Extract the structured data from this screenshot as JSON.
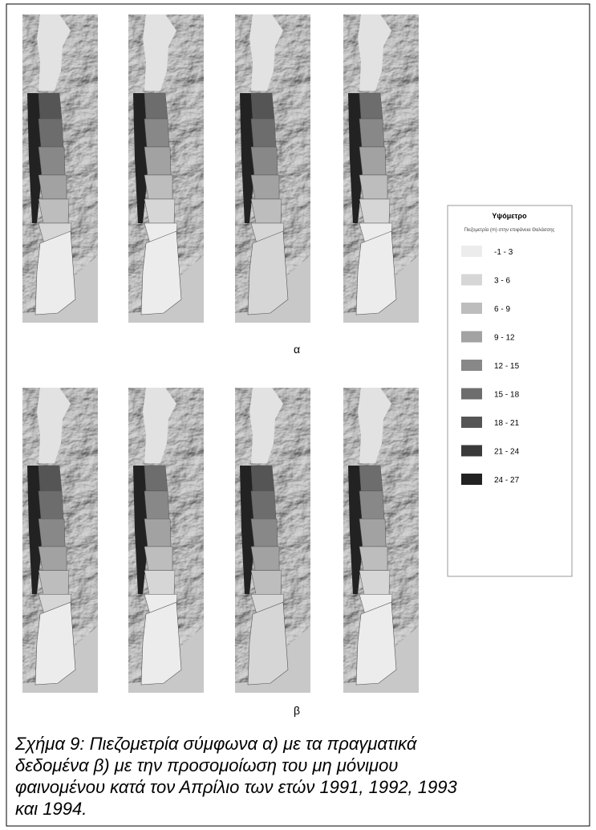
{
  "figure": {
    "panel_labels": [
      "α",
      "β"
    ]
  },
  "legend": {
    "title": "Υψόμετρο",
    "subtitle": "Πιεζομετρία (m) στην επιφάνεια Θαλάσσης",
    "items": [
      {
        "label": "-1 - 3",
        "color": "#ececec"
      },
      {
        "label": "3 - 6",
        "color": "#d6d6d6"
      },
      {
        "label": "6 - 9",
        "color": "#bdbdbd"
      },
      {
        "label": "9 - 12",
        "color": "#a2a2a2"
      },
      {
        "label": "12 - 15",
        "color": "#888888"
      },
      {
        "label": "15 - 18",
        "color": "#6d6d6d"
      },
      {
        "label": "18 - 21",
        "color": "#555555"
      },
      {
        "label": "21 - 24",
        "color": "#3a3a3a"
      },
      {
        "label": "24 - 27",
        "color": "#222222"
      }
    ]
  },
  "caption": {
    "lines": [
      "Σχήμα 9:  Πιεζομετρία σύμφωνα α) με τα πραγματικά",
      "δεδομένα β) με την προσομοίωση του μη μόνιμου",
      "φαινομένου κατά τον Απρίλιο των ετών 1991, 1992, 1993",
      "και 1994."
    ]
  }
}
